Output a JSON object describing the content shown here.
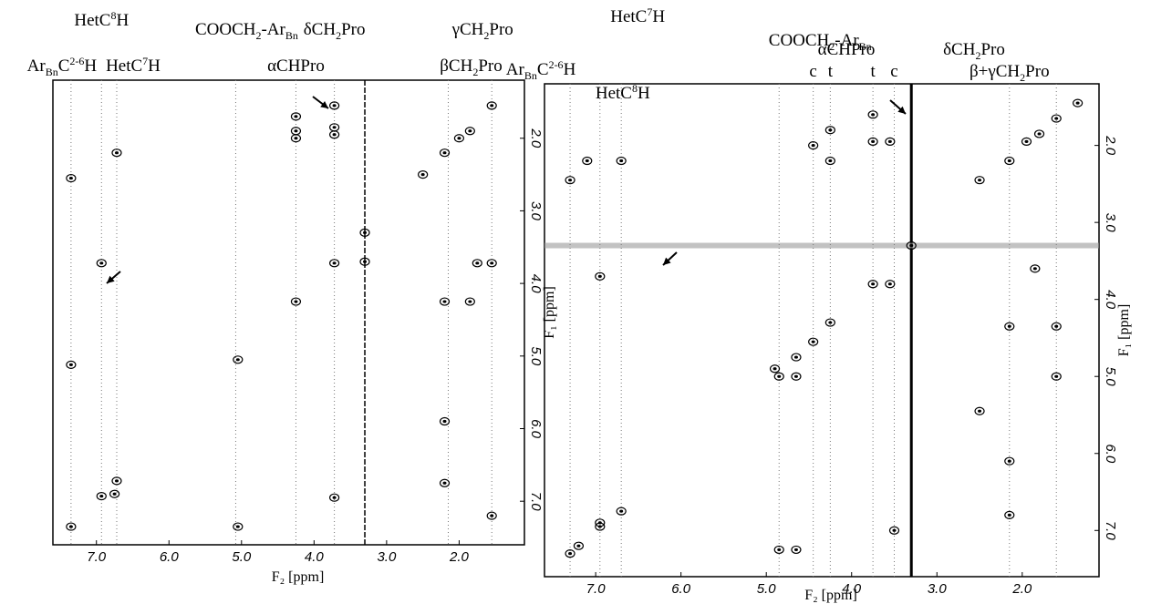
{
  "chart_data": [
    {
      "type": "scatter",
      "xlabel": "F₂ [ppm]",
      "ylabel": "F₁ [ppm]",
      "color": "#000000",
      "xlim": [
        7.6,
        1.1
      ],
      "ylim": [
        1.2,
        7.6
      ],
      "xticks": [
        {
          "value": 7,
          "label": "7.0"
        },
        {
          "value": 6,
          "label": "6.0"
        },
        {
          "value": 5,
          "label": "5.0"
        },
        {
          "value": 4,
          "label": "4.0"
        },
        {
          "value": 3,
          "label": "3.0"
        },
        {
          "value": 2,
          "label": "2.0"
        }
      ],
      "yticks": [
        {
          "value": 2,
          "label": "2.0"
        },
        {
          "value": 3,
          "label": "3.0"
        },
        {
          "value": 4,
          "label": "4.0"
        },
        {
          "value": 5,
          "label": "5.0"
        },
        {
          "value": 6,
          "label": "6.0"
        },
        {
          "value": 7,
          "label": "7.0"
        }
      ],
      "streaks": [
        3.3
      ],
      "markers": [
        {
          "x": 7.35,
          "label": [
            {
              "text": "Ar"
            },
            {
              "text": "Bn",
              "sub": true
            },
            {
              "text": "C"
            },
            {
              "text": "2-6",
              "sup": true
            },
            {
              "text": "H"
            }
          ]
        },
        {
          "x": 6.93,
          "label": [
            {
              "text": "HetC"
            },
            {
              "text": "8",
              "sup": true
            },
            {
              "text": "H"
            }
          ]
        },
        {
          "x": 6.72,
          "label": [
            {
              "text": "HetC"
            },
            {
              "text": "7",
              "sup": true
            },
            {
              "text": "H"
            }
          ]
        },
        {
          "x": 5.08,
          "label": [
            {
              "text": "COOCH"
            },
            {
              "text": "2",
              "sub": true
            },
            {
              "text": "-Ar"
            },
            {
              "text": "Bn",
              "sub": true
            }
          ]
        },
        {
          "x": 4.25,
          "label": [
            {
              "text": "αCHPro"
            }
          ]
        },
        {
          "x": 3.72,
          "label": [
            {
              "text": "δCH"
            },
            {
              "text": "2",
              "sub": true
            },
            {
              "text": "Pro"
            }
          ]
        },
        {
          "x": 2.15,
          "label": [
            {
              "text": "βCH"
            },
            {
              "text": "2",
              "sub": true
            },
            {
              "text": "Pro"
            }
          ]
        },
        {
          "x": 1.55,
          "label": [
            {
              "text": "γCH"
            },
            {
              "text": "2",
              "sub": true
            },
            {
              "text": "Pro"
            }
          ]
        }
      ],
      "x": [
        7.35,
        6.93,
        6.72,
        6.75,
        5.05,
        4.25,
        3.72,
        3.3,
        2.2,
        2.0,
        1.85,
        1.55,
        2.5,
        4.25,
        4.25,
        4.25,
        3.72,
        3.72,
        3.72,
        6.72,
        6.93,
        7.35,
        7.35,
        2.2,
        1.85,
        1.55,
        1.75,
        2.2,
        2.2,
        1.55,
        3.3,
        3.72,
        5.05
      ],
      "y": [
        7.35,
        6.93,
        6.72,
        6.9,
        5.05,
        4.25,
        3.72,
        3.3,
        2.2,
        2.0,
        1.9,
        1.55,
        2.5,
        1.7,
        1.9,
        2.0,
        1.55,
        1.85,
        1.95,
        2.2,
        3.72,
        2.55,
        5.12,
        4.25,
        4.25,
        3.72,
        3.72,
        5.9,
        6.75,
        7.2,
        3.7,
        6.95,
        7.35
      ]
    },
    {
      "type": "scatter",
      "xlabel": "F₂ [ppm]",
      "ylabel": "F₁ [ppm]",
      "color": "#000000",
      "xlim": [
        7.6,
        1.1
      ],
      "ylim": [
        1.2,
        7.6
      ],
      "xticks": [
        {
          "value": 7,
          "label": "7.0"
        },
        {
          "value": 6,
          "label": "6.0"
        },
        {
          "value": 5,
          "label": "5.0"
        },
        {
          "value": 4,
          "label": "4.0"
        },
        {
          "value": 3,
          "label": "3.0"
        },
        {
          "value": 2,
          "label": "2.0"
        }
      ],
      "yticks": [
        {
          "value": 2,
          "label": "2.0"
        },
        {
          "value": 3,
          "label": "3.0"
        },
        {
          "value": 4,
          "label": "4.0"
        },
        {
          "value": 5,
          "label": "5.0"
        },
        {
          "value": 6,
          "label": "6.0"
        },
        {
          "value": 7,
          "label": "7.0"
        }
      ],
      "streaks": [
        3.3
      ],
      "markers": [
        {
          "x": 7.3,
          "label": [
            {
              "text": "Ar"
            },
            {
              "text": "Bn",
              "sub": true
            },
            {
              "text": "C"
            },
            {
              "text": "2-6",
              "sup": true
            },
            {
              "text": "H"
            }
          ]
        },
        {
          "x": 6.95,
          "label": [
            {
              "text": "HetC"
            },
            {
              "text": "8",
              "sup": true
            },
            {
              "text": "H"
            }
          ]
        },
        {
          "x": 6.7,
          "label": [
            {
              "text": "HetC"
            },
            {
              "text": "7",
              "sup": true
            },
            {
              "text": "H"
            }
          ]
        },
        {
          "x": 4.85,
          "label": [
            {
              "text": "COOCH"
            },
            {
              "text": "2",
              "sub": true
            },
            {
              "text": "-Ar"
            },
            {
              "text": "Bn",
              "sub": true
            }
          ]
        },
        {
          "x": 4.45,
          "label": [
            {
              "text": "c"
            }
          ]
        },
        {
          "x": 4.25,
          "label": [
            {
              "text": "t"
            }
          ]
        },
        {
          "x": 3.75,
          "label": [
            {
              "text": "t"
            }
          ]
        },
        {
          "x": 3.5,
          "label": [
            {
              "text": "c"
            }
          ]
        },
        {
          "x": 2.15,
          "label": [
            {
              "text": "β+γCH"
            },
            {
              "text": "2",
              "sub": true
            },
            {
              "text": "Pro"
            }
          ]
        },
        {
          "x": 1.6,
          "label": []
        }
      ],
      "headers": [
        {
          "label": [
            {
              "text": "αCHPro"
            }
          ]
        },
        {
          "label": [
            {
              "text": "δCH"
            },
            {
              "text": "2",
              "sub": true
            },
            {
              "text": "Pro"
            }
          ]
        }
      ],
      "x": [
        7.3,
        7.2,
        6.95,
        6.7,
        6.95,
        4.9,
        4.65,
        4.85,
        4.65,
        4.45,
        4.25,
        3.75,
        3.55,
        3.3,
        2.5,
        2.15,
        1.95,
        1.8,
        1.6,
        1.35,
        4.45,
        4.25,
        4.25,
        3.75,
        3.55,
        3.75,
        6.7,
        6.95,
        7.3,
        7.1,
        4.85,
        4.65,
        2.15,
        1.6,
        1.85,
        2.15,
        2.15,
        2.5,
        3.5,
        1.6
      ],
      "y": [
        7.3,
        7.2,
        6.95,
        6.75,
        6.9,
        4.9,
        4.75,
        5.0,
        5.0,
        4.55,
        4.3,
        3.8,
        3.8,
        3.3,
        2.45,
        2.2,
        1.95,
        1.85,
        1.65,
        1.45,
        2.0,
        1.8,
        2.2,
        1.95,
        1.95,
        1.6,
        2.2,
        3.7,
        2.45,
        2.2,
        7.25,
        7.25,
        4.35,
        4.35,
        3.6,
        6.1,
        6.8,
        5.45,
        7.0,
        5.0
      ]
    }
  ]
}
